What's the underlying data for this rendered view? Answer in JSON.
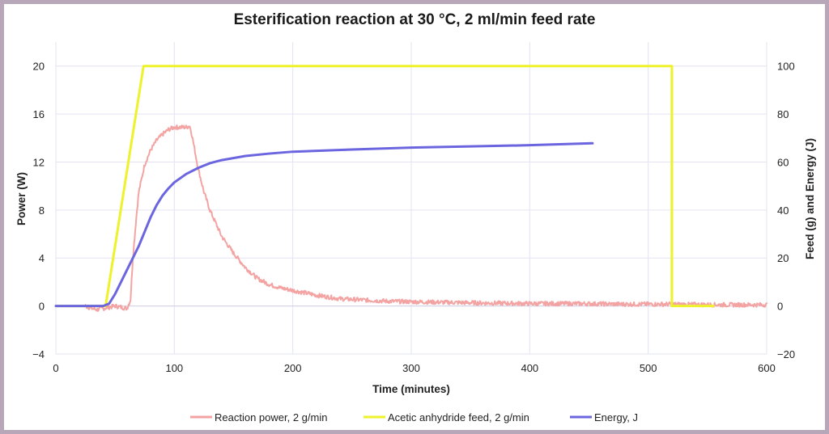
{
  "chart_data": {
    "type": "line",
    "title": "Esterification reaction at 30 °C, 2 ml/min feed rate",
    "xlabel": "Time (minutes)",
    "ylabel_left": "Power (W)",
    "ylabel_right": "Feed (g) and Energy (J)",
    "xlim": [
      0,
      600
    ],
    "ylim_left": [
      -4,
      22
    ],
    "ylim_right": [
      -20,
      110
    ],
    "x_ticks": [
      0,
      100,
      200,
      300,
      400,
      500,
      600
    ],
    "y_left_ticks": [
      -4,
      0,
      4,
      8,
      12,
      16,
      20
    ],
    "y_right_ticks": [
      -20,
      0,
      20,
      40,
      60,
      80,
      100
    ],
    "grid": true,
    "legend_position": "bottom",
    "series": [
      {
        "name": "Reaction power, 2 g/min",
        "axis": "left",
        "color": "#f4a3a3",
        "noisy": true,
        "x": [
          0,
          25,
          30,
          35,
          40,
          45,
          50,
          55,
          60,
          63,
          65,
          68,
          70,
          75,
          80,
          85,
          90,
          95,
          100,
          105,
          110,
          113,
          115,
          120,
          125,
          130,
          140,
          150,
          160,
          170,
          180,
          190,
          200,
          220,
          240,
          260,
          280,
          300,
          330,
          360,
          400,
          440,
          480,
          520,
          560,
          600
        ],
        "y": [
          0,
          0,
          -0.2,
          -0.3,
          -0.2,
          -0.1,
          0,
          -0.1,
          -0.2,
          0.5,
          4.0,
          7.5,
          9.5,
          11.8,
          13.0,
          13.8,
          14.3,
          14.7,
          14.9,
          14.9,
          14.9,
          15.0,
          14.2,
          11.5,
          9.5,
          8.0,
          5.8,
          4.4,
          3.2,
          2.3,
          1.8,
          1.5,
          1.3,
          0.9,
          0.6,
          0.5,
          0.4,
          0.35,
          0.3,
          0.25,
          0.2,
          0.2,
          0.15,
          0.15,
          0.1,
          0.1
        ]
      },
      {
        "name": "Acetic anhydride feed, 2 g/min",
        "axis": "right",
        "color": "#eef22a",
        "noisy": false,
        "x": [
          0,
          42,
          74,
          520,
          520,
          555
        ],
        "y": [
          0,
          0,
          100,
          100,
          0,
          0
        ]
      },
      {
        "name": "Energy, J",
        "axis": "right",
        "color": "#6b66df",
        "noisy": false,
        "x": [
          0,
          40,
          45,
          50,
          55,
          60,
          65,
          70,
          75,
          80,
          85,
          90,
          95,
          100,
          110,
          120,
          130,
          140,
          160,
          180,
          200,
          250,
          300,
          350,
          400,
          453
        ],
        "y": [
          0,
          0,
          1,
          5,
          10,
          15,
          20,
          25,
          31,
          37,
          42,
          46,
          49,
          51.5,
          55,
          57.5,
          59.5,
          60.8,
          62.5,
          63.5,
          64.3,
          65.2,
          66,
          66.5,
          67,
          67.8
        ]
      }
    ]
  }
}
